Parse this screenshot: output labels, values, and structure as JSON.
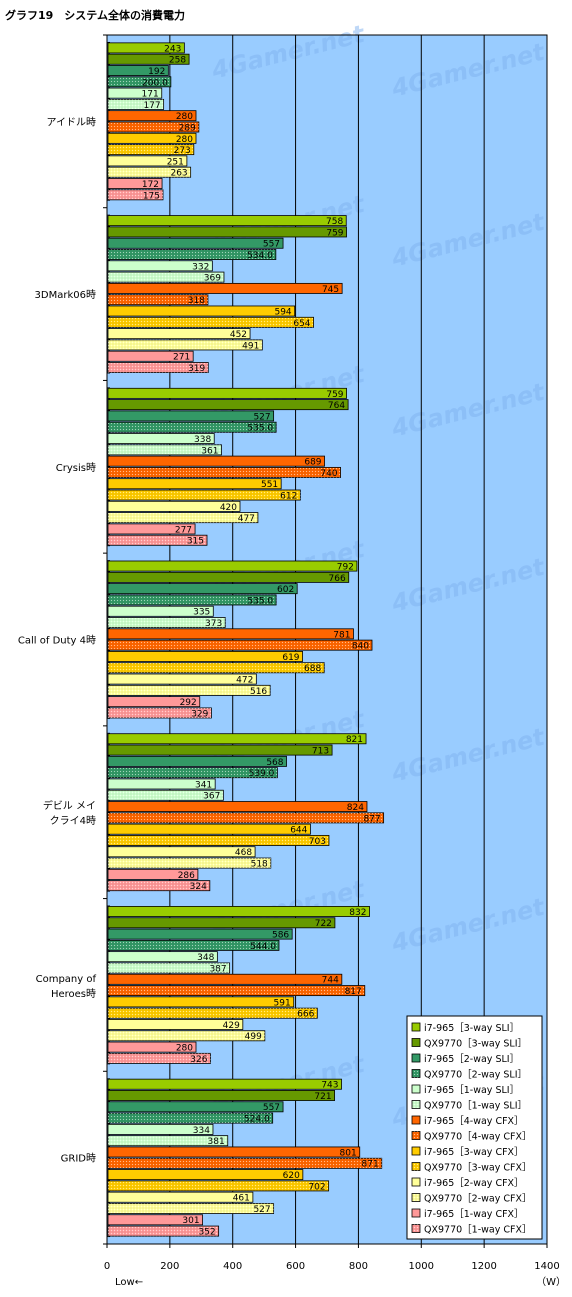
{
  "chart_data": {
    "type": "bar",
    "orientation": "horizontal",
    "title": "グラフ19　システム全体の消費電力",
    "unit": "（W）",
    "xlabel_note": "Low←",
    "xlim": [
      0,
      1400
    ],
    "xticks": [
      0,
      200,
      400,
      600,
      800,
      1000,
      1200,
      1400
    ],
    "grid": true,
    "legend_position": "bottom-right",
    "watermark": "4Gamer.net",
    "categories": [
      [
        "アイドル時"
      ],
      [
        "3DMark06時"
      ],
      [
        "Crysis時"
      ],
      [
        "Call of Duty 4時"
      ],
      [
        "デビル メイ",
        "クライ4時"
      ],
      [
        "Company of",
        "Heroes時"
      ],
      [
        "GRID時"
      ]
    ],
    "series": [
      {
        "name": "i7-965［3-way SLI］",
        "color": "#99cc00",
        "pattern": false,
        "values": [
          243,
          758,
          759,
          792,
          821,
          832,
          743
        ],
        "labels": [
          "243",
          "758",
          "759",
          "792",
          "821",
          "832",
          "743"
        ]
      },
      {
        "name": "QX9770［3-way SLI］",
        "color": "#669900",
        "pattern": false,
        "values": [
          258,
          759,
          764,
          766,
          713,
          722,
          721
        ],
        "labels": [
          "258",
          "759",
          "764",
          "766",
          "713",
          "722",
          "721"
        ]
      },
      {
        "name": "i7-965［2-way SLI］",
        "color": "#339966",
        "pattern": false,
        "values": [
          192,
          557,
          527,
          602,
          568,
          586,
          557
        ],
        "labels": [
          "192",
          "557",
          "527",
          "602",
          "568",
          "586",
          "557"
        ]
      },
      {
        "name": "QX9770［2-way SLI］",
        "color": "#339966",
        "pattern": true,
        "values": [
          200,
          534,
          535,
          535,
          539,
          544,
          524
        ],
        "labels": [
          "200.0",
          "534.0",
          "535.0",
          "535.0",
          "539.0",
          "544.0",
          "524.0"
        ]
      },
      {
        "name": "i7-965［1-way SLI］",
        "color": "#ccffcc",
        "pattern": false,
        "values": [
          171,
          332,
          338,
          335,
          341,
          348,
          334
        ],
        "labels": [
          "171",
          "332",
          "338",
          "335",
          "341",
          "348",
          "334"
        ]
      },
      {
        "name": "QX9770［1-way SLI］",
        "color": "#ccffcc",
        "pattern": true,
        "values": [
          177,
          369,
          361,
          373,
          367,
          387,
          381
        ],
        "labels": [
          "177",
          "369",
          "361",
          "373",
          "367",
          "387",
          "381"
        ]
      },
      {
        "name": "i7-965［4-way CFX］",
        "color": "#ff6600",
        "pattern": false,
        "values": [
          280,
          745,
          689,
          781,
          824,
          744,
          801
        ],
        "labels": [
          "280",
          "745",
          "689",
          "781",
          "824",
          "744",
          "801"
        ]
      },
      {
        "name": "QX9770［4-way CFX］",
        "color": "#ff6600",
        "pattern": true,
        "values": [
          289,
          318,
          740,
          840,
          877,
          817,
          871
        ],
        "labels": [
          "289",
          "318",
          "740",
          "840",
          "877",
          "817",
          "871"
        ]
      },
      {
        "name": "i7-965［3-way CFX］",
        "color": "#ffcc00",
        "pattern": false,
        "values": [
          280,
          594,
          551,
          619,
          644,
          591,
          620
        ],
        "labels": [
          "280",
          "594",
          "551",
          "619",
          "644",
          "591",
          "620"
        ]
      },
      {
        "name": "QX9770［3-way CFX］",
        "color": "#ffcc00",
        "pattern": true,
        "values": [
          273,
          654,
          612,
          688,
          703,
          666,
          702
        ],
        "labels": [
          "273",
          "654",
          "612",
          "688",
          "703",
          "666",
          "702"
        ]
      },
      {
        "name": "i7-965［2-way CFX］",
        "color": "#ffff99",
        "pattern": false,
        "values": [
          251,
          452,
          420,
          472,
          468,
          429,
          461
        ],
        "labels": [
          "251",
          "452",
          "420",
          "472",
          "468",
          "429",
          "461"
        ]
      },
      {
        "name": "QX9770［2-way CFX］",
        "color": "#ffff99",
        "pattern": true,
        "values": [
          263,
          491,
          477,
          516,
          518,
          499,
          527
        ],
        "labels": [
          "263",
          "491",
          "477",
          "516",
          "518",
          "499",
          "527"
        ]
      },
      {
        "name": "i7-965［1-way CFX］",
        "color": "#ff9999",
        "pattern": false,
        "values": [
          172,
          271,
          277,
          292,
          286,
          280,
          301
        ],
        "labels": [
          "172",
          "271",
          "277",
          "292",
          "286",
          "280",
          "301"
        ]
      },
      {
        "name": "QX9770［1-way CFX］",
        "color": "#ff9999",
        "pattern": true,
        "values": [
          175,
          319,
          315,
          329,
          324,
          326,
          352
        ],
        "labels": [
          "175",
          "319",
          "315",
          "329",
          "324",
          "326",
          "352"
        ]
      }
    ]
  },
  "colors": {
    "plot_background": "#99ccff",
    "grid": "#000000",
    "axis": "#000000",
    "watermark": "#7fb2f0"
  }
}
